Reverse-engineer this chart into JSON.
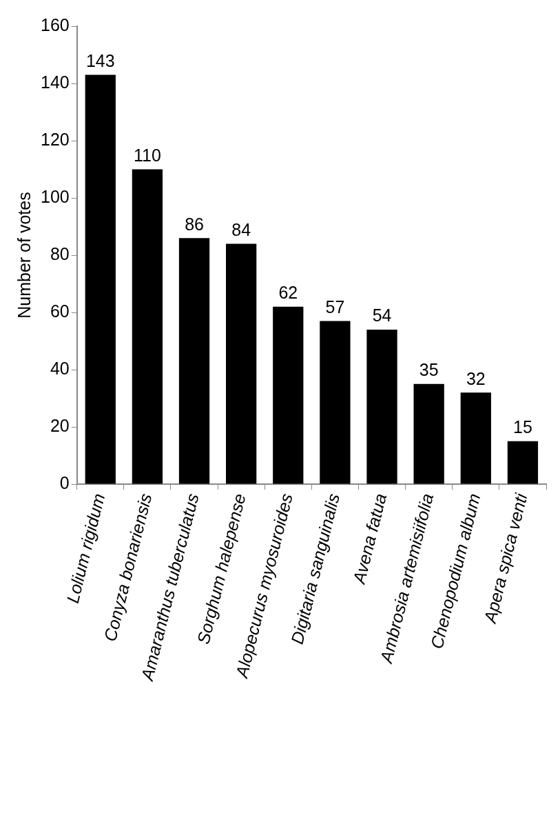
{
  "chart_data": {
    "type": "bar",
    "ylabel": "Number of votes",
    "categories": [
      "Lolium rigidum",
      "Conyza bonariensis",
      "Amaranthus tuberculatus",
      "Sorghum halepense",
      "Alopecurus myosuroides",
      "Digitaria sanguinalis",
      "Avena fatua",
      "Ambrosia artemisiifolia",
      "Chenopodium album",
      "Apera spica venti"
    ],
    "values": [
      143,
      110,
      86,
      84,
      62,
      57,
      54,
      35,
      32,
      15
    ],
    "color": "#000000",
    "ylim": [
      0,
      160
    ],
    "yticks": [
      0,
      20,
      40,
      60,
      80,
      100,
      120,
      140,
      160
    ],
    "grid": false,
    "legend": false,
    "data_labels": true
  }
}
